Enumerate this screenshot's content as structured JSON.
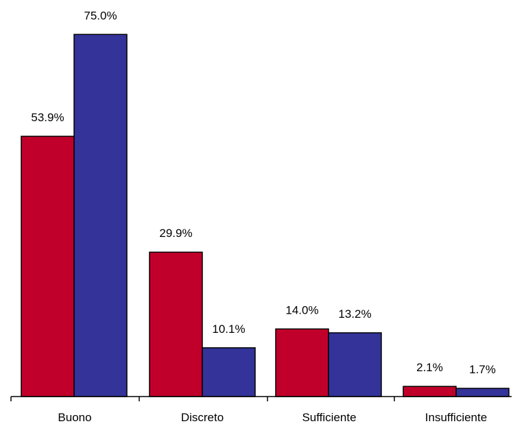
{
  "chart_data": {
    "type": "bar",
    "categories": [
      "Buono",
      "Discreto",
      "Sufficiente",
      "Insufficiente"
    ],
    "series": [
      {
        "color": "#C0002A",
        "values": [
          53.9,
          29.9,
          14.0,
          2.1
        ],
        "labels": [
          "53.9%",
          "29.9%",
          "14.0%",
          "2.1%"
        ]
      },
      {
        "color": "#333399",
        "values": [
          75.0,
          10.1,
          13.2,
          1.7
        ],
        "labels": [
          "75.0%",
          "10.1%",
          "13.2%",
          "1.7%"
        ]
      }
    ],
    "ylim": [
      0,
      80
    ],
    "grid": false,
    "legend": "none",
    "title": "",
    "xlabel": "",
    "ylabel": ""
  }
}
